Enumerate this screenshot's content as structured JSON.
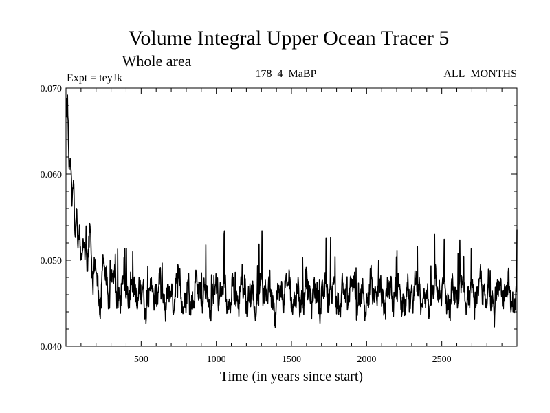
{
  "chart_data": {
    "type": "line",
    "title": "Volume Integral Upper Ocean Tracer 5",
    "subtitle": "Whole area",
    "expt_label": "Expt = teyJk",
    "center_label": "178_4_MaBP",
    "right_label": "ALL_MONTHS",
    "xlabel": "Time (in years since start)",
    "ylabel": "",
    "xlim": [
      0,
      3000
    ],
    "ylim": [
      0.04,
      0.07
    ],
    "x_ticks": [
      500,
      1000,
      1500,
      2000,
      2500
    ],
    "x_tick_labels": [
      "500",
      "1000",
      "1500",
      "2000",
      "2500"
    ],
    "y_ticks": [
      0.04,
      0.05,
      0.06,
      0.07
    ],
    "y_tick_labels": [
      "0.040",
      "0.050",
      "0.060",
      "0.070"
    ],
    "grid": false,
    "series": [
      {
        "x": [
          0,
          10,
          20,
          30,
          40,
          50,
          60,
          70,
          80,
          90,
          100,
          120,
          140,
          160,
          180,
          200,
          225,
          250,
          275,
          300,
          350,
          400,
          450,
          500,
          600,
          700,
          800,
          900,
          1000,
          1100,
          1200,
          1300,
          1400,
          1500,
          1600,
          1700,
          1800,
          1900,
          2000,
          2100,
          2200,
          2300,
          2400,
          2500,
          2600,
          2700,
          2800,
          2900,
          3000
        ],
        "values": [
          0.0665,
          0.069,
          0.0605,
          0.062,
          0.057,
          0.0595,
          0.0525,
          0.056,
          0.0515,
          0.0535,
          0.05,
          0.0525,
          0.0475,
          0.0545,
          0.047,
          0.0485,
          0.0455,
          0.0505,
          0.045,
          0.0475,
          0.046,
          0.0475,
          0.0458,
          0.0462,
          0.0458,
          0.0462,
          0.0458,
          0.0462,
          0.0458,
          0.0462,
          0.0458,
          0.0462,
          0.0458,
          0.0462,
          0.0458,
          0.0462,
          0.0458,
          0.0462,
          0.0458,
          0.0462,
          0.0458,
          0.0462,
          0.0458,
          0.0462,
          0.0458,
          0.0462,
          0.0458,
          0.0462,
          0.046
        ],
        "noise_amplitude": 0.0028,
        "color": "#000000"
      }
    ]
  }
}
